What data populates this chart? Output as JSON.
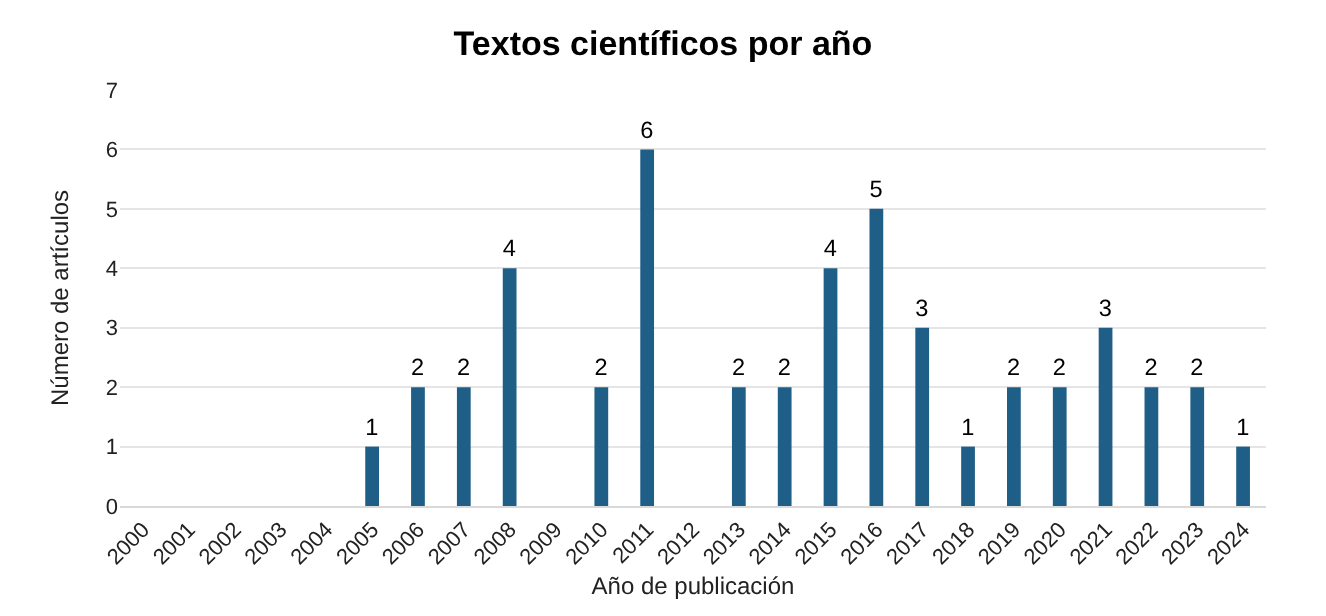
{
  "chart_data": {
    "type": "bar",
    "title": "Textos científicos por año",
    "xlabel": "Año de publicación",
    "ylabel": "Número de artículos",
    "categories": [
      "2000",
      "2001",
      "2002",
      "2003",
      "2004",
      "2005",
      "2006",
      "2007",
      "2008",
      "2009",
      "2010",
      "2011",
      "2012",
      "2013",
      "2014",
      "2015",
      "2016",
      "2017",
      "2018",
      "2019",
      "2020",
      "2021",
      "2022",
      "2023",
      "2024"
    ],
    "values": [
      0,
      0,
      0,
      0,
      0,
      1,
      2,
      2,
      4,
      0,
      2,
      6,
      0,
      2,
      2,
      4,
      5,
      3,
      1,
      2,
      2,
      3,
      2,
      2,
      1
    ],
    "value_labels": [
      null,
      null,
      null,
      null,
      null,
      "1",
      "2",
      "2",
      "4",
      null,
      "2",
      "6",
      null,
      "2",
      "2",
      "4",
      "5",
      "3",
      "1",
      "2",
      "2",
      "3",
      "2",
      "2",
      "1"
    ],
    "color": "#1f5f87",
    "ylim": [
      0,
      7
    ],
    "yticks": [
      0,
      1,
      2,
      3,
      4,
      5,
      6,
      7
    ],
    "grid": "y"
  }
}
